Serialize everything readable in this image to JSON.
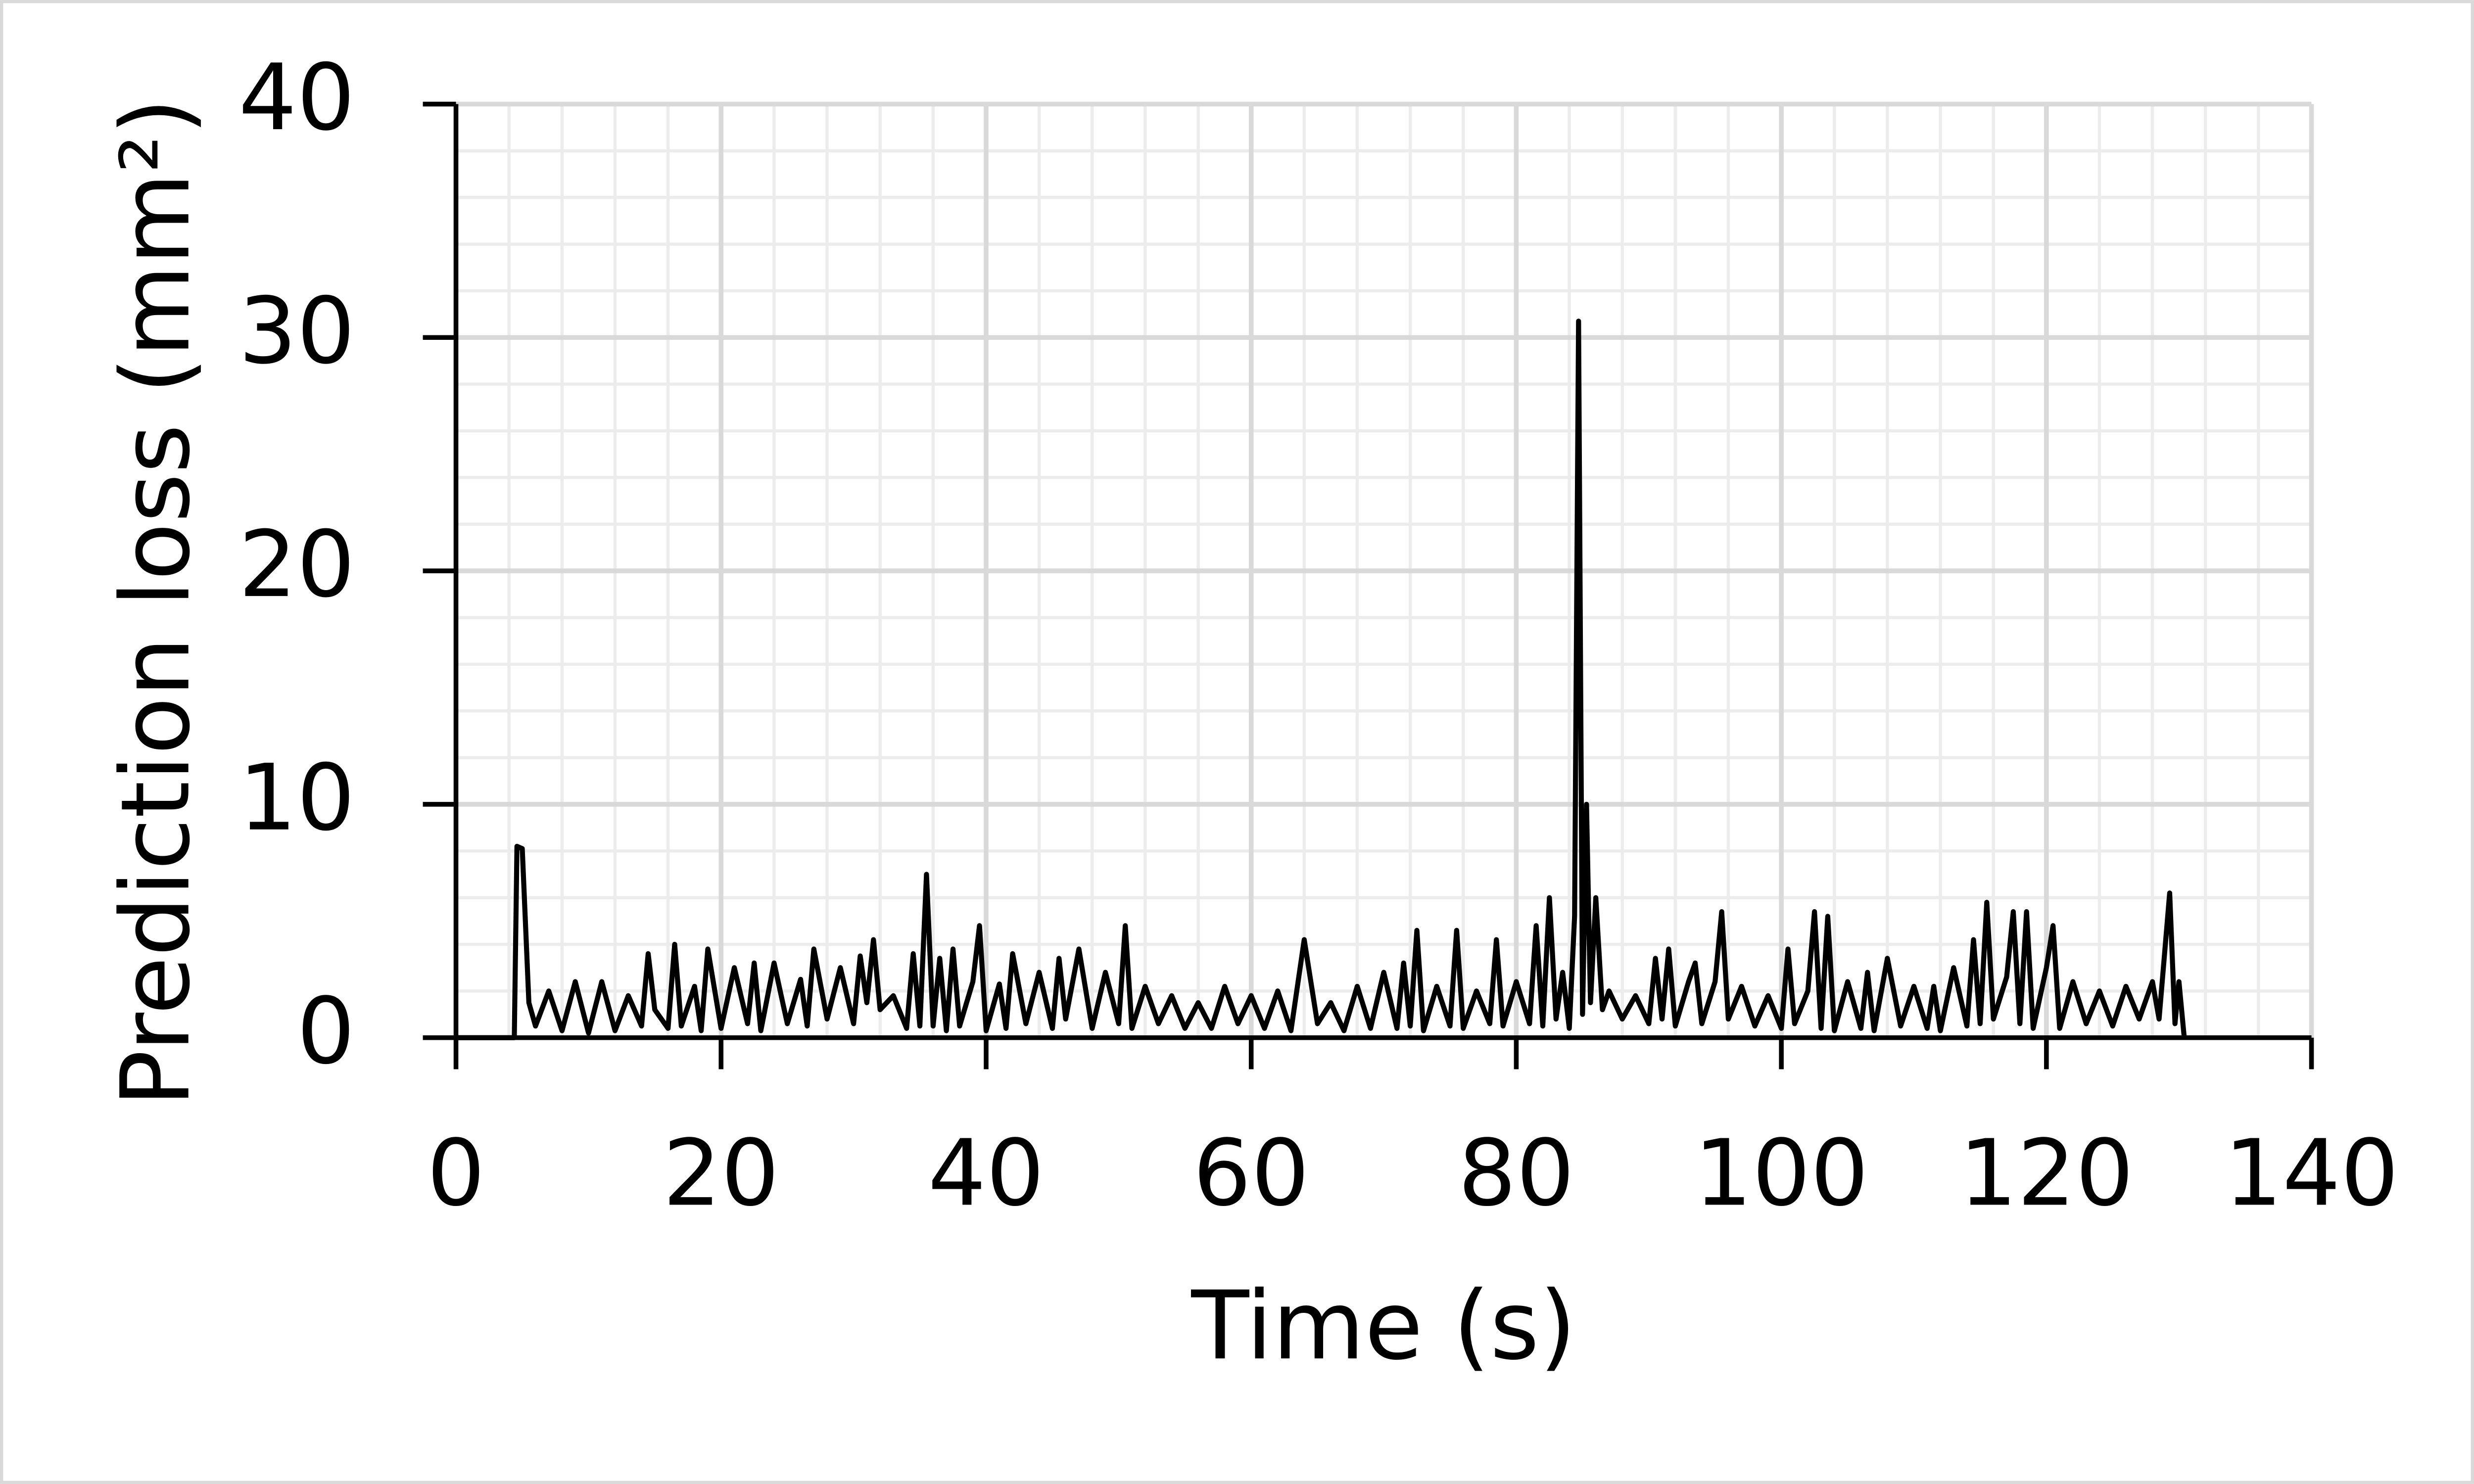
{
  "chart_data": {
    "type": "line",
    "xlabel": "Time (s)",
    "ylabel": "Prediction loss (mm²)",
    "xlim": [
      0,
      140
    ],
    "xticks": [
      0,
      20,
      40,
      60,
      80,
      100,
      120,
      140
    ],
    "ylim": [
      0,
      40
    ],
    "yticks": [
      0,
      10,
      20,
      30,
      40
    ],
    "x_minor_ticks": [
      4,
      8,
      12,
      16,
      24,
      28,
      32,
      36,
      44,
      48,
      52,
      56,
      64,
      68,
      72,
      76,
      84,
      88,
      92,
      96,
      104,
      108,
      112,
      116,
      124,
      128,
      132,
      136
    ],
    "y_minor_ticks": [
      2,
      4,
      6,
      8,
      12,
      14,
      16,
      18,
      22,
      24,
      26,
      28,
      32,
      34,
      36,
      38
    ],
    "grid": true,
    "x": [
      0,
      4.4,
      4.6,
      5,
      5.5,
      6,
      7,
      8,
      9,
      10,
      11,
      12,
      13,
      14,
      14.5,
      15,
      16,
      16.5,
      17,
      18,
      18.5,
      19,
      20,
      21,
      22,
      22.5,
      23,
      24,
      25,
      26,
      26.5,
      27,
      28,
      29,
      30,
      30.5,
      31,
      31.5,
      32,
      33,
      34,
      34.5,
      35,
      35.5,
      36,
      36.5,
      37,
      37.5,
      38,
      39,
      39.5,
      40,
      41,
      41.5,
      42,
      43,
      44,
      45,
      45.5,
      46,
      47,
      48,
      49,
      50,
      50.5,
      51,
      52,
      53,
      54,
      55,
      56,
      57,
      58,
      59,
      60,
      61,
      62,
      63,
      64,
      65,
      66,
      67,
      68,
      69,
      70,
      71,
      71.5,
      72,
      72.5,
      73,
      74,
      75,
      75.5,
      76,
      77,
      78,
      78.5,
      79,
      80,
      81,
      81.5,
      82,
      82.5,
      83,
      83.5,
      84,
      84.4,
      84.7,
      85,
      85.3,
      85.6,
      86,
      86.5,
      87,
      88,
      89,
      90,
      90.5,
      91,
      91.5,
      92,
      93,
      93.5,
      94,
      95,
      95.5,
      96,
      97,
      98,
      99,
      100,
      100.5,
      101,
      102,
      102.5,
      103,
      103.5,
      104,
      105,
      106,
      106.5,
      107,
      108,
      109,
      110,
      111,
      111.5,
      112,
      113,
      114,
      114.5,
      115,
      115.5,
      116,
      117,
      117.5,
      118,
      118.5,
      119,
      120,
      120.5,
      121,
      122,
      123,
      124,
      125,
      126,
      127,
      128,
      128.5,
      129.3,
      129.7,
      130,
      130.4
    ],
    "series": [
      {
        "name": "Prediction loss",
        "color": "#000000",
        "values": [
          0,
          0,
          8.2,
          8.1,
          1.5,
          0.5,
          2,
          0.3,
          2.4,
          0.2,
          2.4,
          0.3,
          1.8,
          0.5,
          3.6,
          1.2,
          0.4,
          4,
          0.5,
          2.2,
          0.3,
          3.8,
          0.4,
          3,
          0.6,
          3.2,
          0.3,
          3.2,
          0.6,
          2.5,
          0.5,
          3.8,
          0.8,
          3,
          0.6,
          3.5,
          1.5,
          4.2,
          1.2,
          1.8,
          0.4,
          3.6,
          0.5,
          7,
          0.5,
          3.4,
          0.3,
          3.8,
          0.5,
          2.4,
          4.8,
          0.3,
          2.3,
          0.4,
          3.6,
          0.6,
          2.8,
          0.4,
          3.4,
          0.8,
          3.8,
          0.4,
          2.8,
          0.6,
          4.8,
          0.4,
          2.2,
          0.6,
          1.8,
          0.4,
          1.5,
          0.4,
          2.2,
          0.6,
          1.8,
          0.4,
          2,
          0.3,
          4.2,
          0.6,
          1.5,
          0.3,
          2.2,
          0.4,
          2.8,
          0.4,
          3.2,
          0.5,
          4.6,
          0.3,
          2.2,
          0.5,
          4.6,
          0.4,
          2,
          0.6,
          4.2,
          0.5,
          2.4,
          0.6,
          4.8,
          0.5,
          6,
          0.8,
          2.8,
          0.4,
          5.2,
          30.7,
          1,
          10,
          1.5,
          6,
          1.2,
          2,
          0.8,
          1.8,
          0.6,
          3.4,
          0.8,
          3.8,
          0.5,
          2.4,
          3.2,
          0.6,
          2.4,
          5.4,
          0.8,
          2.2,
          0.5,
          1.8,
          0.4,
          3.8,
          0.6,
          2,
          5.4,
          0.4,
          5.2,
          0.3,
          2.4,
          0.4,
          2.8,
          0.3,
          3.4,
          0.5,
          2.2,
          0.4,
          2.2,
          0.3,
          3,
          0.5,
          4.2,
          0.6,
          5.8,
          0.8,
          2.6,
          5.4,
          0.6,
          5.4,
          0.4,
          3,
          4.8,
          0.4,
          2.4,
          0.6,
          2,
          0.5,
          2.2,
          0.8,
          2.4,
          0.8,
          6.2,
          0.6,
          2.4,
          0
        ]
      }
    ]
  }
}
